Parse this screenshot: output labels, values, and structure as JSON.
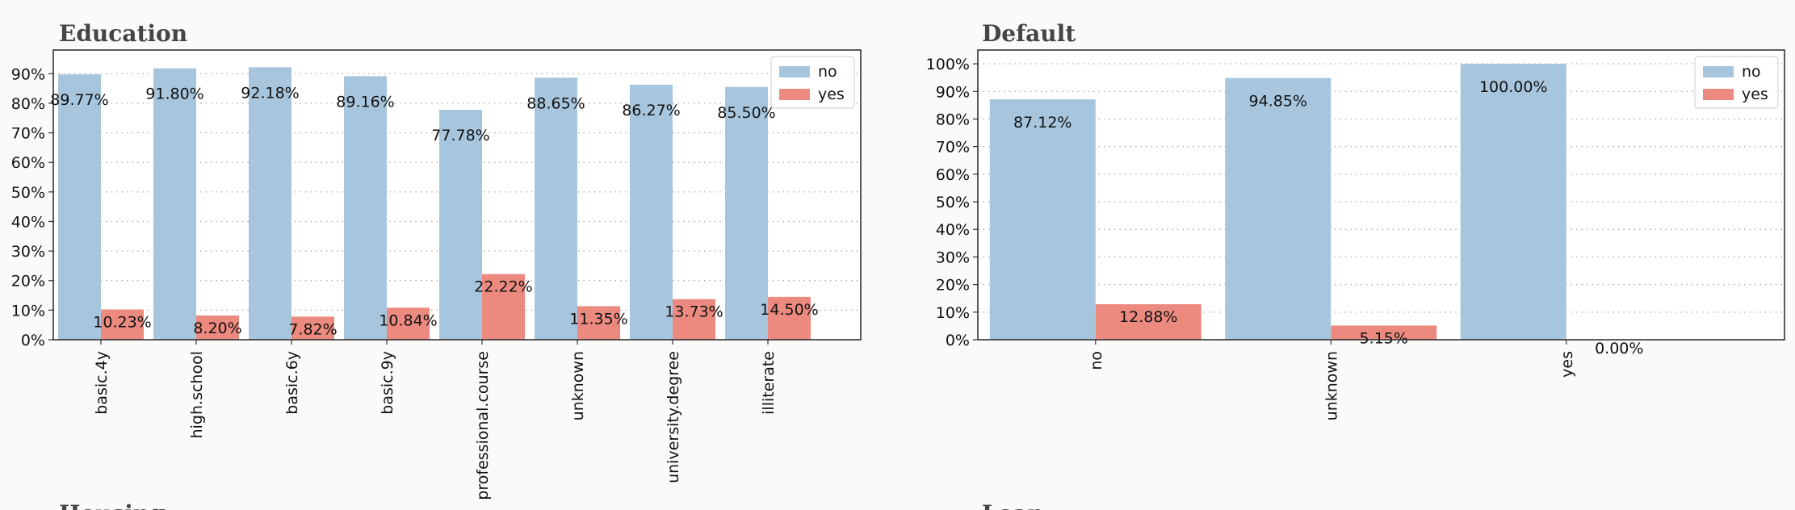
{
  "chart_data": [
    {
      "type": "bar",
      "title": "Education",
      "categories": [
        "basic.4y",
        "high.school",
        "basic.6y",
        "basic.9y",
        "professional.course",
        "unknown",
        "university.degree",
        "illiterate"
      ],
      "series": [
        {
          "name": "no",
          "color": "#a7c6de",
          "values": [
            89.77,
            91.8,
            92.18,
            89.16,
            77.78,
            88.65,
            86.27,
            85.5
          ]
        },
        {
          "name": "yes",
          "color": "#ec8a80",
          "values": [
            10.23,
            8.2,
            7.82,
            10.84,
            22.22,
            11.35,
            13.73,
            14.5
          ]
        }
      ],
      "data_labels": {
        "no": [
          "89.77%",
          "91.80%",
          "92.18%",
          "89.16%",
          "77.78%",
          "88.65%",
          "86.27%",
          "85.50%"
        ],
        "yes": [
          "10.23%",
          "8.20%",
          "7.82%",
          "10.84%",
          "22.22%",
          "11.35%",
          "13.73%",
          "14.50%"
        ]
      },
      "ylim": [
        0,
        98
      ],
      "yticks": [
        0,
        10,
        20,
        30,
        40,
        50,
        60,
        70,
        80,
        90
      ],
      "ytick_labels": [
        "0%",
        "10%",
        "20%",
        "30%",
        "40%",
        "50%",
        "60%",
        "70%",
        "80%",
        "90%"
      ],
      "grid": "horizontal-dotted",
      "legend": "top-right",
      "xlabel": "",
      "ylabel": ""
    },
    {
      "type": "bar",
      "title": "Default",
      "categories": [
        "no",
        "unknown",
        "yes"
      ],
      "series": [
        {
          "name": "no",
          "color": "#a7c6de",
          "values": [
            87.12,
            94.85,
            100.0
          ]
        },
        {
          "name": "yes",
          "color": "#ec8a80",
          "values": [
            12.88,
            5.15,
            0.0
          ]
        }
      ],
      "data_labels": {
        "no": [
          "87.12%",
          "94.85%",
          "100.00%"
        ],
        "yes": [
          "12.88%",
          "5.15%",
          "0.00%"
        ]
      },
      "ylim": [
        0,
        105
      ],
      "yticks": [
        0,
        10,
        20,
        30,
        40,
        50,
        60,
        70,
        80,
        90,
        100
      ],
      "ytick_labels": [
        "0%",
        "10%",
        "20%",
        "30%",
        "40%",
        "50%",
        "60%",
        "70%",
        "80%",
        "90%",
        "100%"
      ],
      "grid": "horizontal-dotted",
      "legend": "top-right",
      "xlabel": "",
      "ylabel": ""
    }
  ],
  "next_row_titles": [
    "Housing",
    "Loan"
  ]
}
